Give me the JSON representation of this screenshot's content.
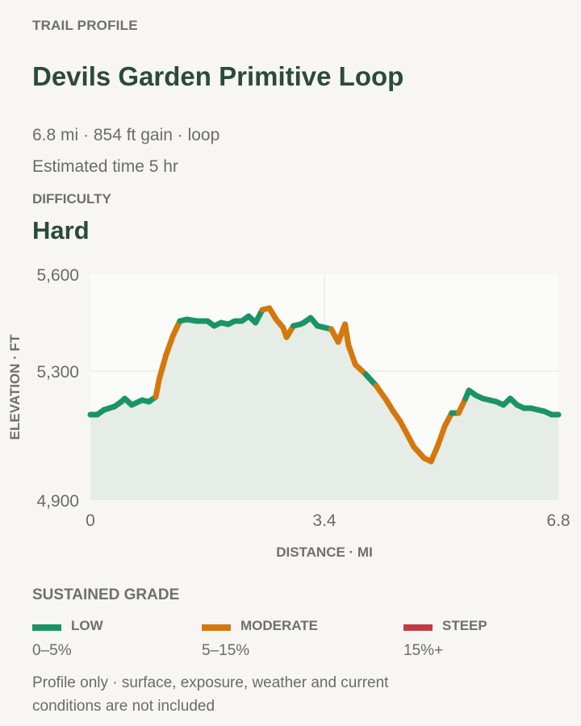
{
  "header": {
    "eyebrow": "TRAIL PROFILE",
    "title": "Devils Garden Primitive Loop",
    "stats": "6.8 mi · 854 ft gain · loop",
    "time": "Estimated time 5 hr",
    "difficulty_label": "DIFFICULTY",
    "difficulty_value": "Hard"
  },
  "chart_data": {
    "type": "area",
    "xlabel": "DISTANCE · MI",
    "ylabel": "ELEVATION · FT",
    "xlim": [
      0,
      6.8
    ],
    "ylim": [
      4900,
      5600
    ],
    "x_ticks": [
      0,
      3.4,
      6.8
    ],
    "x_tick_labels": [
      "0",
      "3.4",
      "6.8"
    ],
    "y_ticks": [
      4900,
      5300,
      5600
    ],
    "y_tick_labels": [
      "4,900",
      "5,300",
      "5,600"
    ],
    "grid": true,
    "colors": {
      "low": "#1a9466",
      "moderate": "#d4780e",
      "steep": "#c23a44",
      "fill": "#e6ede6"
    },
    "x": [
      0,
      0.1,
      0.2,
      0.35,
      0.45,
      0.5,
      0.6,
      0.75,
      0.85,
      0.95,
      1.0,
      1.1,
      1.2,
      1.3,
      1.4,
      1.55,
      1.7,
      1.8,
      1.9,
      2.0,
      2.1,
      2.2,
      2.3,
      2.4,
      2.5,
      2.6,
      2.7,
      2.8,
      2.85,
      2.95,
      3.05,
      3.1,
      3.2,
      3.3,
      3.4,
      3.5,
      3.6,
      3.7,
      3.75,
      3.85,
      4.0,
      4.15,
      4.3,
      4.4,
      4.5,
      4.6,
      4.7,
      4.85,
      4.95,
      5.05,
      5.15,
      5.25,
      5.35,
      5.45,
      5.5,
      5.6,
      5.7,
      5.8,
      5.9,
      6.0,
      6.1,
      6.2,
      6.3,
      6.4,
      6.5,
      6.6,
      6.7,
      6.8
    ],
    "y": [
      5165,
      5165,
      5180,
      5190,
      5205,
      5215,
      5195,
      5210,
      5205,
      5220,
      5275,
      5350,
      5410,
      5455,
      5460,
      5455,
      5455,
      5440,
      5450,
      5445,
      5455,
      5455,
      5470,
      5450,
      5490,
      5495,
      5460,
      5435,
      5405,
      5440,
      5445,
      5450,
      5465,
      5440,
      5435,
      5430,
      5390,
      5445,
      5380,
      5320,
      5290,
      5255,
      5210,
      5175,
      5145,
      5105,
      5065,
      5030,
      5020,
      5070,
      5130,
      5170,
      5170,
      5215,
      5240,
      5225,
      5215,
      5210,
      5205,
      5195,
      5215,
      5195,
      5185,
      5185,
      5180,
      5175,
      5165,
      5165
    ],
    "segment_grade": [
      "low",
      "low",
      "low",
      "low",
      "low",
      "low",
      "low",
      "low",
      "low",
      "moderate",
      "moderate",
      "moderate",
      "moderate",
      "low",
      "low",
      "low",
      "low",
      "low",
      "low",
      "low",
      "low",
      "low",
      "low",
      "low",
      "moderate",
      "moderate",
      "moderate",
      "moderate",
      "moderate",
      "low",
      "low",
      "low",
      "low",
      "low",
      "low",
      "moderate",
      "moderate",
      "moderate",
      "moderate",
      "moderate",
      "low",
      "moderate",
      "moderate",
      "moderate",
      "moderate",
      "moderate",
      "moderate",
      "moderate",
      "moderate",
      "moderate",
      "moderate",
      "low",
      "moderate",
      "low",
      "low",
      "low",
      "low",
      "low",
      "low",
      "low",
      "low",
      "low",
      "low",
      "low",
      "low",
      "low",
      "low"
    ]
  },
  "legend": {
    "title": "SUSTAINED GRADE",
    "items": [
      {
        "name": "LOW",
        "range": "0–5%",
        "color": "#1a9466"
      },
      {
        "name": "MODERATE",
        "range": "5–15%",
        "color": "#d4780e"
      },
      {
        "name": "STEEP",
        "range": "15%+",
        "color": "#c23a44"
      }
    ]
  },
  "footnote": "Profile only · surface, exposure, weather and current conditions are not included"
}
